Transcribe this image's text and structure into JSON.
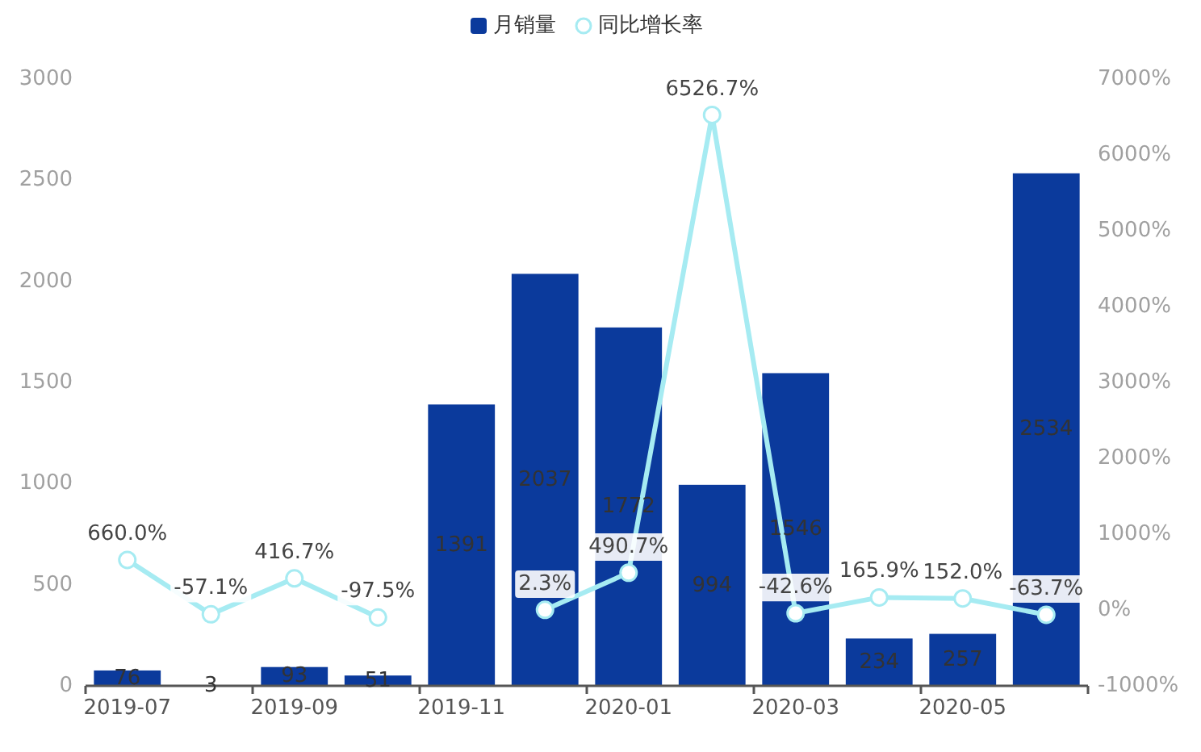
{
  "chart_data": {
    "type": "bar",
    "legend": "top",
    "categories": [
      "2019-07",
      null,
      "2019-09",
      null,
      "2019-11",
      null,
      "2020-01",
      null,
      "2020-03",
      null,
      "2020-05",
      null
    ],
    "series": [
      {
        "name": "月销量",
        "color": "#0b3a9c",
        "values": [
          76,
          3,
          93,
          51,
          1391,
          2037,
          1772,
          994,
          1546,
          234,
          257,
          2534
        ],
        "value_labels": [
          "76",
          "3",
          "93",
          "51",
          "1391",
          "2037",
          "1772",
          "994",
          "1546",
          "234",
          "257",
          "2534"
        ]
      },
      {
        "name": "同比增长率",
        "type": "line",
        "axis": "y2",
        "color": "#a6ebf2",
        "marker": "circle",
        "values": [
          660.0,
          -57.1,
          416.7,
          -97.5,
          null,
          2.3,
          490.7,
          6526.7,
          -42.6,
          165.9,
          152.0,
          -63.7
        ],
        "value_labels": [
          "660.0%",
          "-57.1%",
          "416.7%",
          "-97.5%",
          null,
          "2.3%",
          "490.7%",
          "6526.7%",
          "-42.6%",
          "165.9%",
          "152.0%",
          "-63.7%"
        ]
      }
    ],
    "ylim": [
      0,
      3000
    ],
    "yticks": [
      0,
      500,
      1000,
      1500,
      2000,
      2500,
      3000
    ],
    "y2lim": [
      -1000,
      7000
    ],
    "y2ticks": [
      {
        "value": -1000,
        "label": "-1000%"
      },
      {
        "value": 0,
        "label": "0%"
      },
      {
        "value": 1000,
        "label": "1000%"
      },
      {
        "value": 2000,
        "label": "2000%"
      },
      {
        "value": 3000,
        "label": "3000%"
      },
      {
        "value": 4000,
        "label": "4000%"
      },
      {
        "value": 5000,
        "label": "5000%"
      },
      {
        "value": 6000,
        "label": "6000%"
      },
      {
        "value": 7000,
        "label": "7000%"
      }
    ]
  }
}
